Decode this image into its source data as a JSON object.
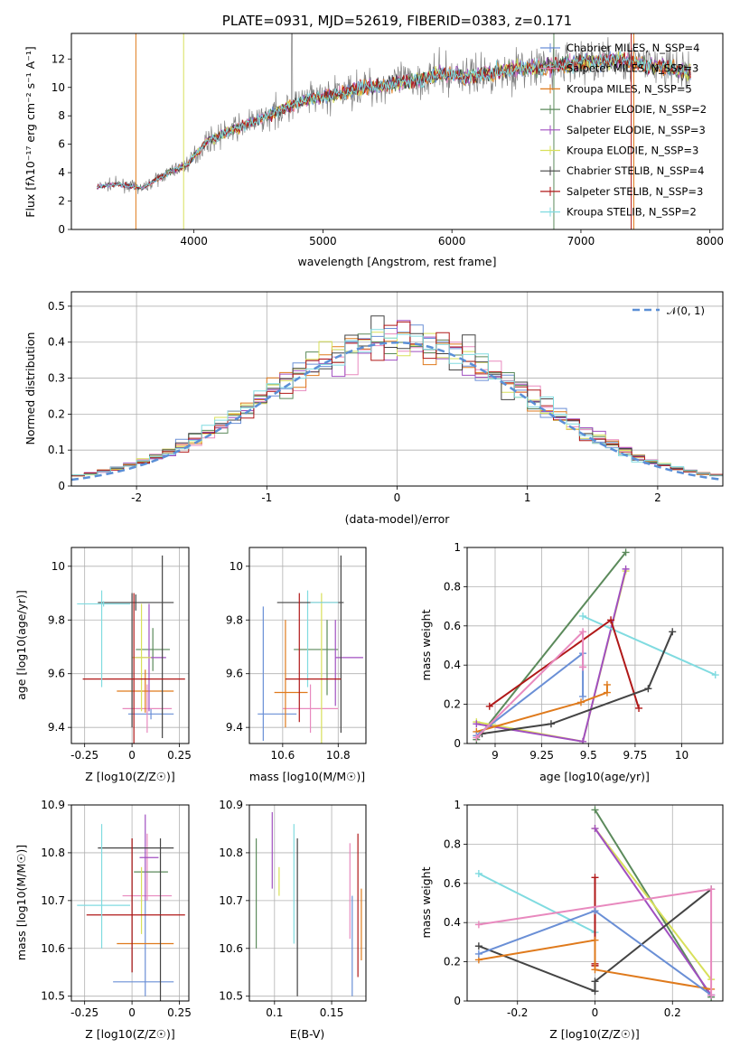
{
  "chart_data": [
    {
      "id": "spectrum",
      "type": "line",
      "title": "PLATE=0931, MJD=52619, FIBERID=0383, z=0.171",
      "xlabel": "wavelength [Angstrom, rest frame]",
      "ylabel": "Flux [fλ10⁻¹⁷ erg cm⁻² s⁻¹ A⁻¹]",
      "xlim": [
        3050,
        8100
      ],
      "ylim": [
        0,
        13.8
      ],
      "xticks": [
        4000,
        5000,
        6000,
        7000,
        8000
      ],
      "yticks": [
        0,
        2,
        4,
        6,
        8,
        10,
        12
      ],
      "grid": false,
      "legend_position": "top-right",
      "data_color": "#808080",
      "continuum": {
        "x": [
          3250,
          3400,
          3600,
          3800,
          3950,
          4100,
          4300,
          4500,
          4700,
          4900,
          5100,
          5300,
          5500,
          5700,
          5900,
          6100,
          6300,
          6500,
          6700,
          6900,
          7100,
          7300,
          7500,
          7700,
          7850
        ],
        "y": [
          3.0,
          3.2,
          2.9,
          4.0,
          4.6,
          6.2,
          7.0,
          7.7,
          8.5,
          9.2,
          9.5,
          10.0,
          10.2,
          10.5,
          10.9,
          10.8,
          11.0,
          11.3,
          11.4,
          11.7,
          11.8,
          12.0,
          11.6,
          11.3,
          11.1
        ]
      },
      "series": [
        {
          "name": "Chabrier MILES, N_SSP=4",
          "color": "#6a8fd6"
        },
        {
          "name": "Salpeter MILES, N_SSP=3",
          "color": "#e889be"
        },
        {
          "name": "Kroupa MILES, N_SSP=5",
          "color": "#df7a1c"
        },
        {
          "name": "Chabrier ELODIE, N_SSP=2",
          "color": "#5b8a5b"
        },
        {
          "name": "Salpeter ELODIE, N_SSP=3",
          "color": "#a04fc0"
        },
        {
          "name": "Kroupa ELODIE, N_SSP=3",
          "color": "#d8e05a"
        },
        {
          "name": "Chabrier STELIB, N_SSP=4",
          "color": "#444444"
        },
        {
          "name": "Salpeter STELIB, N_SSP=3",
          "color": "#b01818"
        },
        {
          "name": "Kroupa STELIB, N_SSP=2",
          "color": "#80dbe0"
        }
      ]
    },
    {
      "id": "residuals",
      "type": "line",
      "xlabel": "(data-model)/error",
      "ylabel": "Normed distribution",
      "xlim": [
        -2.5,
        2.5
      ],
      "ylim": [
        0,
        0.54
      ],
      "xticks": [
        -2,
        -1,
        0,
        1,
        2
      ],
      "yticks": [
        0.0,
        0.1,
        0.2,
        0.3,
        0.4,
        0.5
      ],
      "grid": true,
      "legend_position": "top-right",
      "reference": {
        "name": "𝒩(0, 1)",
        "color": "#5b8fd6",
        "style": "dashed"
      }
    },
    {
      "id": "age-vs-z",
      "type": "scatter",
      "xlabel": "Z [log10(Z/Z☉)]",
      "ylabel": "age  [log10(age/yr)]",
      "xlim": [
        -0.32,
        0.3
      ],
      "ylim": [
        9.34,
        10.07
      ],
      "xticks": [
        -0.25,
        0.0,
        0.25
      ],
      "yticks": [
        9.4,
        9.6,
        9.8,
        10.0
      ],
      "grid": true,
      "points": [
        {
          "x": 0.1,
          "xerr": 0.12,
          "y": 9.45,
          "yerr": 0.02,
          "color": "#6a8fd6"
        },
        {
          "x": 0.08,
          "xerr": 0.13,
          "y": 9.47,
          "yerr": 0.09,
          "color": "#e889be"
        },
        {
          "x": 0.07,
          "xerr": 0.15,
          "y": 9.535,
          "yerr": 0.08,
          "color": "#df7a1c"
        },
        {
          "x": 0.11,
          "xerr": 0.09,
          "y": 9.69,
          "yerr": 0.08,
          "color": "#5b8a5b"
        },
        {
          "x": 0.09,
          "xerr": 0.09,
          "y": 9.66,
          "yerr": 0.2,
          "color": "#a04fc0"
        },
        {
          "x": 0.05,
          "xerr": 0.05,
          "y": 9.66,
          "yerr": 0.2,
          "color": "#d8e05a"
        },
        {
          "x": 0.02,
          "xerr": 0.2,
          "y": 9.865,
          "yerr": 0.03,
          "color": "#444444"
        },
        {
          "x": 0.0,
          "xerr": 0.0,
          "y": 9.65,
          "yerr": 0.25,
          "color": "#444444"
        },
        {
          "x": 0.16,
          "xerr": 0.0,
          "y": 9.7,
          "yerr": 0.34,
          "color": "#444444"
        },
        {
          "x": 0.01,
          "xerr": 0.27,
          "y": 9.58,
          "yerr": 0.32,
          "color": "#b01818"
        },
        {
          "x": -0.15,
          "xerr": 0.14,
          "y": 9.86,
          "yerr": 0.01,
          "color": "#80dbe0"
        },
        {
          "x": -0.16,
          "xerr": 0.0,
          "y": 9.73,
          "yerr": 0.18,
          "color": "#80dbe0"
        }
      ]
    },
    {
      "id": "age-vs-mass",
      "type": "scatter",
      "xlabel": "mass [log10(M/M☉)]",
      "xlim": [
        10.48,
        10.9
      ],
      "ylim": [
        9.34,
        10.07
      ],
      "xticks": [
        10.6,
        10.8
      ],
      "yticks": [
        9.4,
        9.6,
        9.8,
        10.0
      ],
      "grid": true,
      "points": [
        {
          "x": 10.58,
          "xerr": 0.07,
          "y": 9.45,
          "yerr": 0.0,
          "color": "#6a8fd6"
        },
        {
          "x": 10.53,
          "xerr": 0.0,
          "y": 9.6,
          "yerr": 0.25,
          "color": "#6a8fd6"
        },
        {
          "x": 10.7,
          "xerr": 0.1,
          "y": 9.47,
          "yerr": 0.09,
          "color": "#e889be"
        },
        {
          "x": 10.63,
          "xerr": 0.06,
          "y": 9.53,
          "yerr": 0.0,
          "color": "#df7a1c"
        },
        {
          "x": 10.61,
          "xerr": 0.0,
          "y": 9.6,
          "yerr": 0.2,
          "color": "#df7a1c"
        },
        {
          "x": 10.72,
          "xerr": 0.08,
          "y": 9.69,
          "yerr": 0.0,
          "color": "#5b8a5b"
        },
        {
          "x": 10.76,
          "xerr": 0.0,
          "y": 9.66,
          "yerr": 0.14,
          "color": "#5b8a5b"
        },
        {
          "x": 10.84,
          "xerr": 0.05,
          "y": 9.66,
          "yerr": 0.0,
          "color": "#a04fc0"
        },
        {
          "x": 10.79,
          "xerr": 0.0,
          "y": 9.64,
          "yerr": 0.16,
          "color": "#a04fc0"
        },
        {
          "x": 10.69,
          "xerr": 0.0,
          "y": 9.73,
          "yerr": 0.18,
          "color": "#80dbe0"
        },
        {
          "x": 10.74,
          "xerr": 0.0,
          "y": 9.6,
          "yerr": 0.3,
          "color": "#d8e05a"
        },
        {
          "x": 10.7,
          "xerr": 0.12,
          "y": 9.865,
          "yerr": 0.0,
          "color": "#444444"
        },
        {
          "x": 10.81,
          "xerr": 0.0,
          "y": 9.71,
          "yerr": 0.33,
          "color": "#444444"
        },
        {
          "x": 10.71,
          "xerr": 0.1,
          "y": 9.58,
          "yerr": 0.0,
          "color": "#b01818"
        },
        {
          "x": 10.66,
          "xerr": 0.0,
          "y": 9.66,
          "yerr": 0.24,
          "color": "#b01818"
        },
        {
          "x": 10.75,
          "xerr": 0.05,
          "y": 9.865,
          "yerr": 0.0,
          "color": "#80dbe0"
        }
      ]
    },
    {
      "id": "weight-vs-age",
      "type": "line",
      "xlabel": "age  [log10(age/yr)]",
      "ylabel": "mass weight",
      "xlim": [
        8.85,
        10.22
      ],
      "ylim": [
        0,
        1.0
      ],
      "xticks": [
        9.0,
        9.25,
        9.5,
        9.75,
        10.0
      ],
      "yticks": [
        0.0,
        0.2,
        0.4,
        0.6,
        0.8,
        1.0
      ],
      "grid": true,
      "series": [
        {
          "color": "#5b8a5b",
          "x": [
            8.9,
            9.7
          ],
          "y": [
            0.02,
            0.975
          ]
        },
        {
          "color": "#d8e05a",
          "x": [
            8.9,
            9.47,
            9.7
          ],
          "y": [
            0.11,
            0.01,
            0.88
          ]
        },
        {
          "color": "#a04fc0",
          "x": [
            8.9,
            9.47,
            9.7
          ],
          "y": [
            0.1,
            0.01,
            0.89
          ]
        },
        {
          "color": "#80dbe0",
          "x": [
            9.47,
            10.18
          ],
          "y": [
            0.65,
            0.35
          ]
        },
        {
          "color": "#b01818",
          "x": [
            8.97,
            9.62,
            9.77
          ],
          "y": [
            0.19,
            0.63,
            0.18
          ]
        },
        {
          "color": "#444444",
          "x": [
            8.93,
            9.3,
            9.82,
            9.95
          ],
          "y": [
            0.05,
            0.1,
            0.28,
            0.57
          ]
        },
        {
          "color": "#df7a1c",
          "x": [
            8.9,
            9.46,
            9.6,
            9.6
          ],
          "y": [
            0.06,
            0.21,
            0.26,
            0.3
          ]
        },
        {
          "color": "#6a8fd6",
          "x": [
            8.9,
            9.47,
            9.47
          ],
          "y": [
            0.04,
            0.46,
            0.24
          ]
        },
        {
          "color": "#e889be",
          "x": [
            8.9,
            9.47,
            9.47,
            9.47
          ],
          "y": [
            0.03,
            0.57,
            0.39,
            0.39
          ]
        }
      ]
    },
    {
      "id": "mass-vs-z",
      "type": "scatter",
      "xlabel": "Z [log10(Z/Z☉)]",
      "ylabel": "mass [log10(M/M☉)]",
      "xlim": [
        -0.32,
        0.3
      ],
      "ylim": [
        10.49,
        10.9
      ],
      "xticks": [
        -0.25,
        0.0,
        0.25
      ],
      "yticks": [
        10.5,
        10.6,
        10.7,
        10.8,
        10.9
      ],
      "grid": true,
      "points": [
        {
          "x": 0.06,
          "xerr": 0.16,
          "y": 10.53,
          "yerr": 0.0,
          "color": "#6a8fd6"
        },
        {
          "x": 0.07,
          "xerr": 0.0,
          "y": 10.6,
          "yerr": 0.1,
          "color": "#6a8fd6"
        },
        {
          "x": 0.08,
          "xerr": 0.13,
          "y": 10.71,
          "yerr": 0.0,
          "color": "#e889be"
        },
        {
          "x": 0.08,
          "xerr": 0.0,
          "y": 10.77,
          "yerr": 0.07,
          "color": "#e889be"
        },
        {
          "x": 0.07,
          "xerr": 0.15,
          "y": 10.61,
          "yerr": 0.0,
          "color": "#df7a1c"
        },
        {
          "x": 0.1,
          "xerr": 0.09,
          "y": 10.76,
          "yerr": 0.0,
          "color": "#5b8a5b"
        },
        {
          "x": 0.09,
          "xerr": 0.05,
          "y": 10.79,
          "yerr": 0.0,
          "color": "#a04fc0"
        },
        {
          "x": 0.07,
          "xerr": 0.0,
          "y": 10.79,
          "yerr": 0.09,
          "color": "#a04fc0"
        },
        {
          "x": 0.05,
          "xerr": 0.0,
          "y": 10.7,
          "yerr": 0.07,
          "color": "#d8e05a"
        },
        {
          "x": 0.02,
          "xerr": 0.2,
          "y": 10.81,
          "yerr": 0.0,
          "color": "#444444"
        },
        {
          "x": 0.15,
          "xerr": 0.0,
          "y": 10.66,
          "yerr": 0.17,
          "color": "#444444"
        },
        {
          "x": 0.0,
          "xerr": 0.0,
          "y": 10.69,
          "yerr": 0.14,
          "color": "#444444"
        },
        {
          "x": 0.02,
          "xerr": 0.26,
          "y": 10.67,
          "yerr": 0.0,
          "color": "#b01818"
        },
        {
          "x": 0.0,
          "xerr": 0.0,
          "y": 10.69,
          "yerr": 0.14,
          "color": "#b01818"
        },
        {
          "x": -0.15,
          "xerr": 0.14,
          "y": 10.69,
          "yerr": 0.0,
          "color": "#80dbe0"
        },
        {
          "x": -0.16,
          "xerr": 0.0,
          "y": 10.73,
          "yerr": 0.13,
          "color": "#80dbe0"
        }
      ]
    },
    {
      "id": "mass-vs-ebv",
      "type": "scatter",
      "xlabel": "E(B-V)",
      "xlim": [
        0.078,
        0.18
      ],
      "ylim": [
        10.49,
        10.9
      ],
      "xticks": [
        0.1,
        0.15
      ],
      "yticks": [
        10.5,
        10.6,
        10.7,
        10.8,
        10.9
      ],
      "grid": true,
      "points": [
        {
          "x": 0.084,
          "y": 10.715,
          "yerr": 0.115,
          "color": "#5b8a5b"
        },
        {
          "x": 0.098,
          "y": 10.805,
          "yerr": 0.08,
          "color": "#a04fc0"
        },
        {
          "x": 0.104,
          "y": 10.74,
          "yerr": 0.03,
          "color": "#d8e05a"
        },
        {
          "x": 0.117,
          "y": 10.735,
          "yerr": 0.125,
          "color": "#80dbe0"
        },
        {
          "x": 0.12,
          "y": 10.665,
          "yerr": 0.165,
          "color": "#444444"
        },
        {
          "x": 0.166,
          "y": 10.72,
          "yerr": 0.1,
          "color": "#e889be"
        },
        {
          "x": 0.168,
          "y": 10.605,
          "yerr": 0.105,
          "color": "#6a8fd6"
        },
        {
          "x": 0.173,
          "y": 10.69,
          "yerr": 0.15,
          "color": "#b01818"
        },
        {
          "x": 0.176,
          "y": 10.65,
          "yerr": 0.075,
          "color": "#df7a1c"
        }
      ]
    },
    {
      "id": "weight-vs-z",
      "type": "line",
      "xlabel": "Z [log10(Z/Z☉)]",
      "ylabel": "mass weight",
      "xlim": [
        -0.33,
        0.33
      ],
      "ylim": [
        0,
        1.0
      ],
      "xticks": [
        -0.2,
        0.0,
        0.2
      ],
      "yticks": [
        0.0,
        0.2,
        0.4,
        0.6,
        0.8,
        1.0
      ],
      "grid": true,
      "series": [
        {
          "color": "#5b8a5b",
          "x": [
            0.0,
            0.3
          ],
          "y": [
            0.975,
            0.02
          ]
        },
        {
          "color": "#d8e05a",
          "x": [
            0.0,
            0.3
          ],
          "y": [
            0.88,
            0.11
          ]
        },
        {
          "color": "#a04fc0",
          "x": [
            0.0,
            0.3
          ],
          "y": [
            0.88,
            0.03
          ]
        },
        {
          "color": "#80dbe0",
          "x": [
            -0.3,
            0.0
          ],
          "y": [
            0.65,
            0.35
          ]
        },
        {
          "color": "#b01818",
          "x": [
            0.0,
            0.0,
            0.0,
            0.0
          ],
          "y": [
            0.63,
            0.19,
            0.18,
            0.18
          ]
        },
        {
          "color": "#444444",
          "x": [
            -0.3,
            0.0,
            0.0,
            0.3
          ],
          "y": [
            0.28,
            0.05,
            0.1,
            0.57
          ]
        },
        {
          "color": "#df7a1c",
          "x": [
            -0.3,
            0.0,
            0.0,
            0.3
          ],
          "y": [
            0.21,
            0.31,
            0.16,
            0.06
          ]
        },
        {
          "color": "#6a8fd6",
          "x": [
            -0.3,
            0.0,
            0.3
          ],
          "y": [
            0.24,
            0.46,
            0.03
          ]
        },
        {
          "color": "#e889be",
          "x": [
            -0.3,
            0.3,
            0.3
          ],
          "y": [
            0.39,
            0.57,
            0.03
          ]
        }
      ]
    }
  ]
}
